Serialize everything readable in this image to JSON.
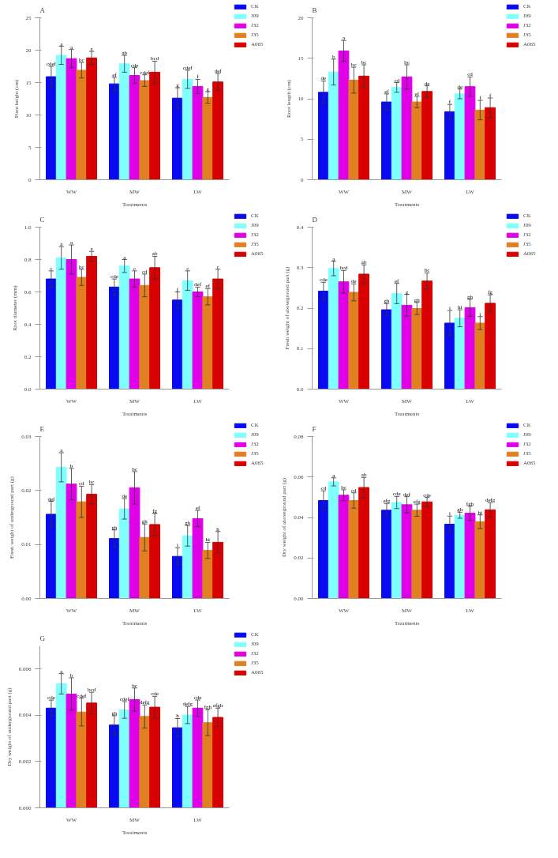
{
  "chart_data": [
    {
      "type": "bar",
      "title": "A",
      "xlabel": "Treatments",
      "ylabel": "Plant height (cm)",
      "categories": [
        "WW",
        "MW",
        "LW"
      ],
      "ylim": [
        0,
        25
      ],
      "yticks": [
        0,
        5,
        10,
        15,
        20,
        25
      ],
      "grid": false,
      "legend": "top right",
      "series": [
        {
          "name": "CK",
          "color": "#0a0af0",
          "values": [
            15.9,
            14.8,
            12.6
          ],
          "errors": [
            1.6,
            1.0,
            1.6
          ],
          "value_labels": [
            "cdef",
            "ef",
            "g"
          ]
        },
        {
          "name": "J09",
          "color": "#80ffff",
          "values": [
            19.2,
            17.9,
            15.5
          ],
          "errors": [
            1.4,
            1.3,
            1.4
          ],
          "value_labels": [
            "a",
            "ab",
            "cdef"
          ]
        },
        {
          "name": "J32",
          "color": "#e000e8",
          "values": [
            18.7,
            16.1,
            14.4
          ],
          "errors": [
            1.4,
            1.2,
            1.1
          ],
          "value_labels": [
            "a",
            "cde",
            "f"
          ]
        },
        {
          "name": "J35",
          "color": "#e08020",
          "values": [
            16.9,
            15.3,
            12.7
          ],
          "errors": [
            1.2,
            0.9,
            0.9
          ],
          "value_labels": [
            "bc",
            "cdef",
            "g"
          ]
        },
        {
          "name": "A065",
          "color": "#d80000",
          "values": [
            18.8,
            16.6,
            15.1
          ],
          "errors": [
            1.0,
            1.7,
            1.3
          ],
          "value_labels": [
            "a",
            "bcd",
            "def"
          ]
        }
      ]
    },
    {
      "type": "bar",
      "title": "B",
      "xlabel": "Treatments",
      "ylabel": "Root length (cm)",
      "categories": [
        "WW",
        "MW",
        "LW"
      ],
      "ylim": [
        0,
        20
      ],
      "yticks": [
        0,
        5,
        10,
        15,
        20
      ],
      "grid": false,
      "legend": "top right",
      "series": [
        {
          "name": "CK",
          "color": "#0a0af0",
          "values": [
            10.8,
            9.6,
            8.4
          ],
          "errors": [
            1.4,
            1.0,
            0.9
          ],
          "value_labels": [
            "de",
            "ef",
            "f"
          ]
        },
        {
          "name": "J09",
          "color": "#80ffff",
          "values": [
            13.3,
            11.4,
            10.6
          ],
          "errors": [
            1.6,
            0.6,
            0.6
          ],
          "value_labels": [
            "b",
            "cd",
            "de"
          ]
        },
        {
          "name": "J32",
          "color": "#e000e8",
          "values": [
            15.9,
            12.7,
            11.5
          ],
          "errors": [
            1.3,
            1.5,
            1.2
          ],
          "value_labels": [
            "a",
            "bc",
            "cd"
          ]
        },
        {
          "name": "J35",
          "color": "#e08020",
          "values": [
            12.3,
            9.6,
            8.6
          ],
          "errors": [
            1.6,
            0.7,
            1.2
          ],
          "value_labels": [
            "bc",
            "ef",
            "f"
          ]
        },
        {
          "name": "A065",
          "color": "#d80000",
          "values": [
            12.8,
            10.9,
            8.9
          ],
          "errors": [
            1.4,
            0.7,
            1.2
          ],
          "value_labels": [
            "bc",
            "de",
            "f"
          ]
        }
      ]
    },
    {
      "type": "bar",
      "title": "C",
      "xlabel": "Treatments",
      "ylabel": "Root diameter (mm)",
      "categories": [
        "WW",
        "MW",
        "LW"
      ],
      "ylim": [
        0,
        1.0
      ],
      "yticks": [
        {
          "value": 0,
          "label": "0.0"
        },
        {
          "value": 0.2,
          "label": "0.2"
        },
        {
          "value": 0.4,
          "label": "0.4"
        },
        {
          "value": 0.6,
          "label": "0.6"
        },
        {
          "value": 0.8,
          "label": "0.8"
        },
        {
          "value": 1.0,
          "label": "1.0"
        }
      ],
      "grid": false,
      "legend": "top right",
      "series": [
        {
          "name": "CK",
          "color": "#0a0af0",
          "values": [
            0.68,
            0.63,
            0.55
          ],
          "errors": [
            0.05,
            0.05,
            0.05
          ],
          "value_labels": [
            "c",
            "cde",
            "f"
          ]
        },
        {
          "name": "J09",
          "color": "#80ffff",
          "values": [
            0.81,
            0.76,
            0.67
          ],
          "errors": [
            0.07,
            0.04,
            0.06
          ],
          "value_labels": [
            "a",
            "a",
            "c"
          ]
        },
        {
          "name": "J32",
          "color": "#e000e8",
          "values": [
            0.8,
            0.68,
            0.6
          ],
          "errors": [
            0.09,
            0.05,
            0.03
          ],
          "value_labels": [
            "a",
            "c",
            "def"
          ]
        },
        {
          "name": "J35",
          "color": "#e08020",
          "values": [
            0.69,
            0.64,
            0.57
          ],
          "errors": [
            0.05,
            0.07,
            0.05
          ],
          "value_labels": [
            "bc",
            "cd",
            "ef"
          ]
        },
        {
          "name": "A065",
          "color": "#d80000",
          "values": [
            0.82,
            0.75,
            0.68
          ],
          "errors": [
            0.03,
            0.07,
            0.06
          ],
          "value_labels": [
            "a",
            "ab",
            "c"
          ]
        }
      ]
    },
    {
      "type": "bar",
      "title": "D",
      "xlabel": "Treatments",
      "ylabel": "Fresh weight of aboveground part (g)",
      "categories": [
        "WW",
        "MW",
        "LW"
      ],
      "ylim": [
        0,
        0.4
      ],
      "yticks": [
        {
          "value": 0,
          "label": "0.0"
        },
        0.1,
        0.2,
        0.3,
        0.4
      ],
      "grid": false,
      "legend": "top right",
      "series": [
        {
          "name": "CK",
          "color": "#0a0af0",
          "values": [
            0.242,
            0.196,
            0.163
          ],
          "errors": [
            0.022,
            0.015,
            0.031
          ],
          "value_labels": [
            "cde",
            "gh",
            "i"
          ]
        },
        {
          "name": "J09",
          "color": "#80ffff",
          "values": [
            0.298,
            0.236,
            0.175
          ],
          "errors": [
            0.018,
            0.025,
            0.021
          ],
          "value_labels": [
            "a",
            "ef",
            "hi"
          ]
        },
        {
          "name": "J32",
          "color": "#e000e8",
          "values": [
            0.265,
            0.207,
            0.201
          ],
          "errors": [
            0.028,
            0.027,
            0.021
          ],
          "value_labels": [
            "bcd",
            "g",
            "gh"
          ]
        },
        {
          "name": "J35",
          "color": "#e08020",
          "values": [
            0.239,
            0.199,
            0.163
          ],
          "errors": [
            0.021,
            0.015,
            0.016
          ],
          "value_labels": [
            "de",
            "gh",
            "i"
          ]
        },
        {
          "name": "A065",
          "color": "#d80000",
          "values": [
            0.284,
            0.267,
            0.212
          ],
          "errors": [
            0.023,
            0.02,
            0.021
          ],
          "value_labels": [
            "ab",
            "bc",
            "fg"
          ]
        }
      ]
    },
    {
      "type": "bar",
      "title": "E",
      "xlabel": "Treatments",
      "ylabel": "Fresh weight of underground part (g)",
      "categories": [
        "WW",
        "MW",
        "LW"
      ],
      "ylim": [
        0,
        0.03
      ],
      "yticks": [
        {
          "value": 0,
          "label": "0.00"
        },
        {
          "value": 0.01,
          "label": "0.01"
        },
        {
          "value": 0.02,
          "label": "0.02"
        },
        {
          "value": 0.03,
          "label": "0.03"
        }
      ],
      "grid": false,
      "legend": "top right",
      "series": [
        {
          "name": "CK",
          "color": "#0a0af0",
          "values": [
            0.0156,
            0.0111,
            0.0078
          ],
          "errors": [
            0.0024,
            0.0016,
            0.0016
          ],
          "value_labels": [
            "def",
            "gh",
            "i"
          ]
        },
        {
          "name": "J09",
          "color": "#80ffff",
          "values": [
            0.0243,
            0.0166,
            0.0116
          ],
          "errors": [
            0.0027,
            0.0019,
            0.0019
          ],
          "value_labels": [
            "a",
            "de",
            "gh"
          ]
        },
        {
          "name": "J32",
          "color": "#e000e8",
          "values": [
            0.0212,
            0.0205,
            0.0148
          ],
          "errors": [
            0.0029,
            0.003,
            0.0015
          ],
          "value_labels": [
            "b",
            "bc",
            "ef"
          ]
        },
        {
          "name": "J35",
          "color": "#e08020",
          "values": [
            0.0179,
            0.0113,
            0.0089
          ],
          "errors": [
            0.0029,
            0.0025,
            0.0015
          ],
          "value_labels": [
            "cd",
            "gh",
            "hi"
          ]
        },
        {
          "name": "A065",
          "color": "#d80000",
          "values": [
            0.0193,
            0.0137,
            0.0104
          ],
          "errors": [
            0.0018,
            0.0021,
            0.002
          ],
          "value_labels": [
            "bc",
            "fg",
            "h"
          ]
        }
      ]
    },
    {
      "type": "bar",
      "title": "F",
      "xlabel": "Treatments",
      "ylabel": "Dry weight of aboveground part (g)",
      "categories": [
        "WW",
        "MW",
        "LW"
      ],
      "ylim": [
        0,
        0.08
      ],
      "yticks": [
        {
          "value": 0,
          "label": "0.00"
        },
        {
          "value": 0.02,
          "label": "0.02"
        },
        {
          "value": 0.04,
          "label": "0.04"
        },
        {
          "value": 0.06,
          "label": "0.06"
        },
        {
          "value": 0.08,
          "label": "0.08"
        }
      ],
      "grid": false,
      "legend": "top right",
      "series": [
        {
          "name": "CK",
          "color": "#0a0af0",
          "values": [
            0.0484,
            0.0436,
            0.0367
          ],
          "errors": [
            0.0048,
            0.0033,
            0.004
          ],
          "value_labels": [
            "cd",
            "efg",
            "i"
          ]
        },
        {
          "name": "J09",
          "color": "#80ffff",
          "values": [
            0.0576,
            0.0474,
            0.0411
          ],
          "errors": [
            0.002,
            0.003,
            0.0015
          ],
          "value_labels": [
            "a",
            "cde",
            "gh"
          ]
        },
        {
          "name": "J32",
          "color": "#e000e8",
          "values": [
            0.051,
            0.0463,
            0.0421
          ],
          "errors": [
            0.0027,
            0.004,
            0.0035
          ],
          "value_labels": [
            "bc",
            "def",
            "fgh"
          ]
        },
        {
          "name": "J35",
          "color": "#e08020",
          "values": [
            0.0484,
            0.0436,
            0.0379
          ],
          "errors": [
            0.0038,
            0.003,
            0.0034
          ],
          "value_labels": [
            "cd",
            "efg",
            "hi"
          ]
        },
        {
          "name": "A065",
          "color": "#d80000",
          "values": [
            0.0548,
            0.0477,
            0.0438
          ],
          "errors": [
            0.005,
            0.0022,
            0.0035
          ],
          "value_labels": [
            "ab",
            "cde",
            "defg"
          ]
        }
      ]
    },
    {
      "type": "bar",
      "title": "G",
      "xlabel": "Treatments",
      "ylabel": "Dry weight of underground part (g)",
      "categories": [
        "WW",
        "MW",
        "LW"
      ],
      "ylim": [
        0,
        0.007
      ],
      "yticks": [
        {
          "value": 0,
          "label": "0.000"
        },
        {
          "value": 0.002,
          "label": "0.002"
        },
        {
          "value": 0.004,
          "label": "0.004"
        },
        {
          "value": 0.006,
          "label": "0.006"
        }
      ],
      "grid": false,
      "legend": "top right",
      "series": [
        {
          "name": "CK",
          "color": "#0a0af0",
          "values": [
            0.00431,
            0.00358,
            0.00346
          ],
          "errors": [
            0.00035,
            0.0004,
            0.0004
          ],
          "value_labels": [
            "cde",
            "gh",
            "h"
          ]
        },
        {
          "name": "J09",
          "color": "#80ffff",
          "values": [
            0.00536,
            0.00423,
            0.00401
          ],
          "errors": [
            0.00044,
            0.00036,
            0.00037
          ],
          "value_labels": [
            "a",
            "cdef",
            "defg"
          ]
        },
        {
          "name": "J32",
          "color": "#e000e8",
          "values": [
            0.00492,
            0.00468,
            0.00431
          ],
          "errors": [
            0.0007,
            0.0005,
            0.00035
          ],
          "value_labels": [
            "b",
            "bc",
            "cde"
          ]
        },
        {
          "name": "J35",
          "color": "#e08020",
          "values": [
            0.00414,
            0.00395,
            0.00368
          ],
          "errors": [
            0.0006,
            0.0005,
            0.00056
          ],
          "value_labels": [
            "cdef",
            "defg",
            "fgh"
          ]
        },
        {
          "name": "A065",
          "color": "#d80000",
          "values": [
            0.00453,
            0.00435,
            0.00391
          ],
          "errors": [
            0.00047,
            0.00047,
            0.0004
          ],
          "value_labels": [
            "bcd",
            "cde",
            "efgh"
          ]
        }
      ]
    }
  ]
}
